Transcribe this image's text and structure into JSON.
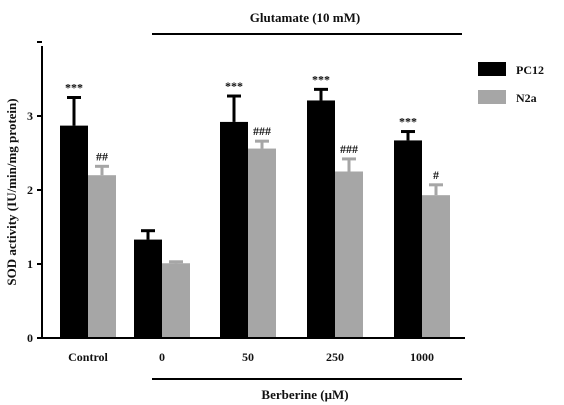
{
  "chart_data": {
    "type": "bar",
    "title": "",
    "xlabel": "",
    "ylabel": "SOD activity (IU/min/mg protein)",
    "ylim": [
      0,
      4
    ],
    "yticks": [
      "0",
      "1",
      "2",
      "3"
    ],
    "grid": false,
    "legend_position": "top-right",
    "categories": [
      "Control",
      "0",
      "50",
      "250",
      "1000"
    ],
    "series": [
      {
        "name": "PC12",
        "color": "#000000",
        "values": [
          2.87,
          1.33,
          2.92,
          3.21,
          2.67
        ],
        "errors": [
          0.38,
          0.12,
          0.35,
          0.15,
          0.12
        ],
        "significance": [
          "***",
          "",
          "***",
          "***",
          "***"
        ]
      },
      {
        "name": "N2a",
        "color": "#a6a6a6",
        "values": [
          2.2,
          1.01,
          2.56,
          2.25,
          1.93
        ],
        "errors": [
          0.12,
          0.02,
          0.1,
          0.17,
          0.14
        ],
        "significance": [
          "##",
          "",
          "###",
          "###",
          "#"
        ]
      }
    ],
    "annotations": {
      "top_group_label": "Glutamate (10 mM)",
      "bottom_group_label": "Berberine (μM)"
    }
  }
}
